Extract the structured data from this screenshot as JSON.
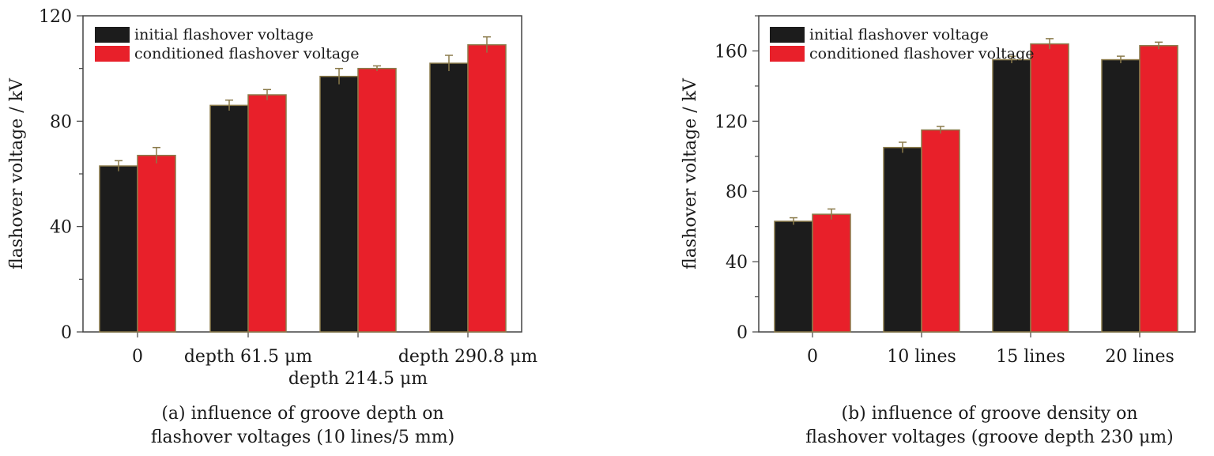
{
  "colors": {
    "initial": "#1c1c1c",
    "conditioned": "#e8202a",
    "bar_edge": "#8a7a4a",
    "axis": "#444444"
  },
  "chart_data": [
    {
      "type": "bar",
      "categories": [
        "0",
        "depth 61.5 μm",
        "depth 214.5 μm",
        "depth 290.8 μm"
      ],
      "series": [
        {
          "name": "initial flashover voltage",
          "values": [
            63,
            86,
            97,
            102
          ],
          "errors": [
            2,
            2,
            3,
            3
          ]
        },
        {
          "name": "conditioned flashover voltage",
          "values": [
            67,
            90,
            100,
            109
          ],
          "errors": [
            3,
            2,
            1,
            3
          ]
        }
      ],
      "ylabel": "flashover voltage / kV",
      "ylim": [
        0,
        120
      ],
      "yticks": [
        0,
        40,
        80,
        120
      ],
      "legend": "top-left",
      "caption_line1": "(a) influence of groove depth on",
      "caption_line2": "flashover voltages (10 lines/5 mm)"
    },
    {
      "type": "bar",
      "categories": [
        "0",
        "10 lines",
        "15 lines",
        "20 lines"
      ],
      "series": [
        {
          "name": "initial flashover voltage",
          "values": [
            63,
            105,
            155,
            155
          ],
          "errors": [
            2,
            3,
            2,
            2
          ]
        },
        {
          "name": "conditioned flashover voltage",
          "values": [
            67,
            115,
            164,
            163
          ],
          "errors": [
            3,
            2,
            3,
            2
          ]
        }
      ],
      "ylabel": "flashover voltage / kV",
      "ylim": [
        0,
        180
      ],
      "yticks": [
        0,
        40,
        80,
        120,
        160
      ],
      "legend": "top-left",
      "caption_line1": "(b) influence of groove density on",
      "caption_line2": "flashover voltages (groove depth 230 μm)"
    }
  ]
}
